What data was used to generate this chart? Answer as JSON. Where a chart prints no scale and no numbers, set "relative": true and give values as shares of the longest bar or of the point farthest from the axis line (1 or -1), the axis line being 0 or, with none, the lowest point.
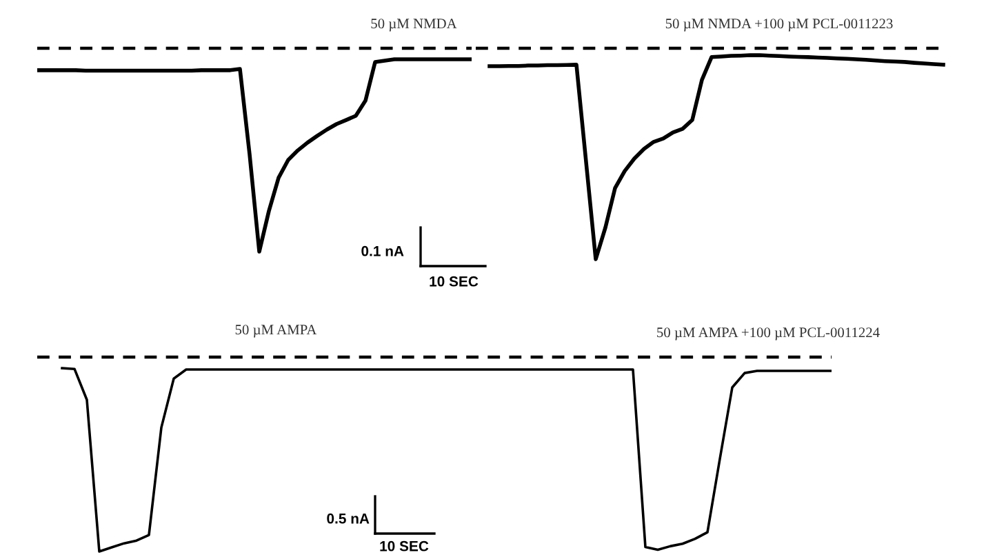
{
  "chart_data": [
    {
      "type": "line",
      "relative": true,
      "legend": false,
      "marker": "none",
      "line_style": "solid",
      "categories": [
        null,
        null,
        null,
        null,
        null,
        null,
        null,
        null,
        null,
        null,
        null,
        null,
        null,
        null,
        null,
        null,
        null,
        null,
        null,
        null,
        null,
        null,
        null,
        null,
        null,
        null,
        null,
        null,
        null,
        null,
        null,
        null,
        null,
        null,
        null,
        null,
        null,
        null,
        null,
        null,
        null,
        null,
        null,
        null,
        null,
        null
      ],
      "series": [
        {
          "color": "#000000",
          "values": [
            -0.108,
            -0.108,
            -0.108,
            -0.108,
            -0.108,
            -0.11,
            -0.11,
            -0.11,
            -0.11,
            -0.11,
            -0.11,
            -0.11,
            -0.11,
            -0.11,
            -0.11,
            -0.11,
            -0.11,
            -0.108,
            -0.108,
            -0.108,
            -0.108,
            -0.102,
            -0.522,
            -1,
            -0.8,
            -0.637,
            -0.549,
            -0.502,
            -0.464,
            -0.431,
            -0.4,
            -0.373,
            -0.353,
            -0.332,
            -0.258,
            -0.068,
            -0.061,
            -0.054,
            -0.054,
            -0.054,
            -0.054,
            -0.054,
            -0.054,
            -0.054,
            -0.054,
            -0.054
          ]
        }
      ],
      "ref_lines": [
        {
          "axis": "y",
          "value": 0,
          "color": "#000000",
          "line_style": "dashed"
        }
      ],
      "annotations": [
        "50 µM NMDA",
        "0.1 nA",
        "10 SEC"
      ]
    },
    {
      "type": "line",
      "relative": true,
      "legend": false,
      "marker": "none",
      "line_style": "solid",
      "categories": [
        null,
        null,
        null,
        null,
        null,
        null,
        null,
        null,
        null,
        null,
        null,
        null,
        null,
        null,
        null,
        null,
        null,
        null,
        null,
        null,
        null,
        null,
        null,
        null,
        null,
        null,
        null,
        null,
        null,
        null,
        null,
        null,
        null,
        null,
        null,
        null,
        null,
        null,
        null,
        null,
        null,
        null,
        null,
        null,
        null,
        null,
        null,
        null
      ],
      "series": [
        {
          "color": "#000000",
          "values": [
            -0.085,
            -0.085,
            -0.084,
            -0.084,
            -0.082,
            -0.082,
            -0.08,
            -0.08,
            -0.079,
            -0.078,
            -0.539,
            -1,
            -0.85,
            -0.663,
            -0.582,
            -0.523,
            -0.477,
            -0.444,
            -0.428,
            -0.399,
            -0.382,
            -0.34,
            -0.15,
            -0.042,
            -0.039,
            -0.036,
            -0.035,
            -0.033,
            -0.033,
            -0.035,
            -0.037,
            -0.039,
            -0.041,
            -0.042,
            -0.044,
            -0.046,
            -0.048,
            -0.05,
            -0.052,
            -0.055,
            -0.058,
            -0.061,
            -0.063,
            -0.065,
            -0.069,
            -0.072,
            -0.075,
            -0.078
          ]
        }
      ],
      "ref_lines": [
        {
          "axis": "y",
          "value": 0,
          "color": "#000000",
          "line_style": "dashed"
        }
      ],
      "annotations": [
        "50 µM NMDA +100 µM PCL-0011223"
      ]
    },
    {
      "type": "line",
      "relative": true,
      "legend": false,
      "marker": "none",
      "line_style": "solid",
      "categories": [
        null,
        null,
        null,
        null,
        null,
        null,
        null,
        null,
        null,
        null,
        null,
        null,
        null,
        null,
        null,
        null,
        null,
        null,
        null,
        null,
        null,
        null,
        null,
        null,
        null,
        null,
        null,
        null,
        null,
        null,
        null,
        null,
        null,
        null,
        null,
        null,
        null,
        null,
        null,
        null,
        null,
        null,
        null,
        null,
        null,
        null,
        null,
        null,
        null,
        null,
        null,
        null,
        null,
        null,
        null,
        null,
        null,
        null,
        null,
        null,
        null,
        null,
        null
      ],
      "series": [
        {
          "color": "#000000",
          "values": [
            -0.057,
            -0.061,
            -0.22,
            -1,
            -0.979,
            -0.958,
            -0.944,
            -0.915,
            -0.362,
            -0.111,
            -0.064,
            -0.064,
            -0.064,
            -0.064,
            -0.064,
            -0.064,
            -0.064,
            -0.064,
            -0.064,
            -0.064,
            -0.064,
            -0.064,
            -0.064,
            -0.064,
            -0.064,
            -0.064,
            -0.064,
            -0.064,
            -0.064,
            -0.064,
            -0.064,
            -0.064,
            -0.064,
            -0.064,
            -0.064,
            -0.064,
            -0.064,
            -0.064,
            -0.064,
            -0.064,
            -0.064,
            -0.064,
            -0.064,
            -0.064,
            -0.064,
            -0.064,
            -0.064,
            -0.977,
            -0.991,
            -0.973,
            -0.96,
            -0.935,
            -0.901,
            -0.524,
            -0.156,
            -0.082,
            -0.071,
            -0.071,
            -0.071,
            -0.071,
            -0.071,
            -0.071,
            -0.071
          ]
        }
      ],
      "ref_lines": [
        {
          "axis": "y",
          "value": 0,
          "color": "#000000",
          "line_style": "dashed"
        }
      ],
      "annotations": [
        "50 µM AMPA",
        "50 µM AMPA +100 µM PCL-0011224",
        "0.5 nA",
        "10 SEC"
      ]
    }
  ]
}
